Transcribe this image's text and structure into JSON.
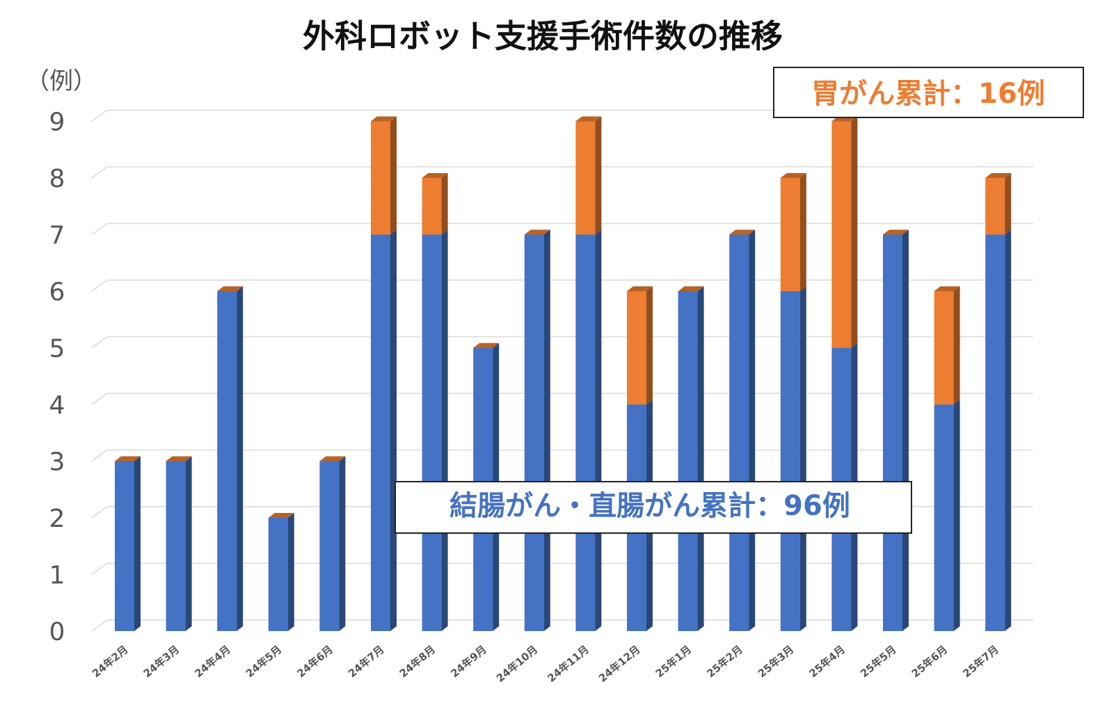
{
  "chart_data": {
    "type": "bar",
    "stacked": true,
    "title": "外科ロボット支援手術件数の推移",
    "ylabel": "（例）",
    "xlabel": "",
    "ylim": [
      0,
      9
    ],
    "yticks": [
      "0",
      "1",
      "2",
      "3",
      "4",
      "5",
      "6",
      "7",
      "8",
      "9"
    ],
    "grid": true,
    "categories": [
      "24年2月",
      "24年3月",
      "24年4月",
      "24年5月",
      "24年6月",
      "24年7月",
      "24年8月",
      "24年9月",
      "24年10月",
      "24年11月",
      "24年12月",
      "25年1月",
      "25年2月",
      "25年3月",
      "25年4月",
      "25年5月",
      "25年6月",
      "25年7月"
    ],
    "series": [
      {
        "color": "#4472C4",
        "values": [
          3,
          3,
          6,
          2,
          3,
          7,
          7,
          5,
          7,
          7,
          4,
          6,
          7,
          6,
          5,
          7,
          4,
          7
        ]
      },
      {
        "color": "#ED7D31",
        "values": [
          0,
          0,
          0,
          0,
          0,
          2,
          1,
          0,
          0,
          2,
          2,
          0,
          0,
          2,
          4,
          0,
          2,
          1
        ]
      }
    ],
    "annotations": [
      {
        "text": "胃がん累計：16例",
        "color": "#ED7D31"
      },
      {
        "text": "結腸がん・直腸がん累計：96例",
        "color": "#4472C4"
      }
    ]
  }
}
